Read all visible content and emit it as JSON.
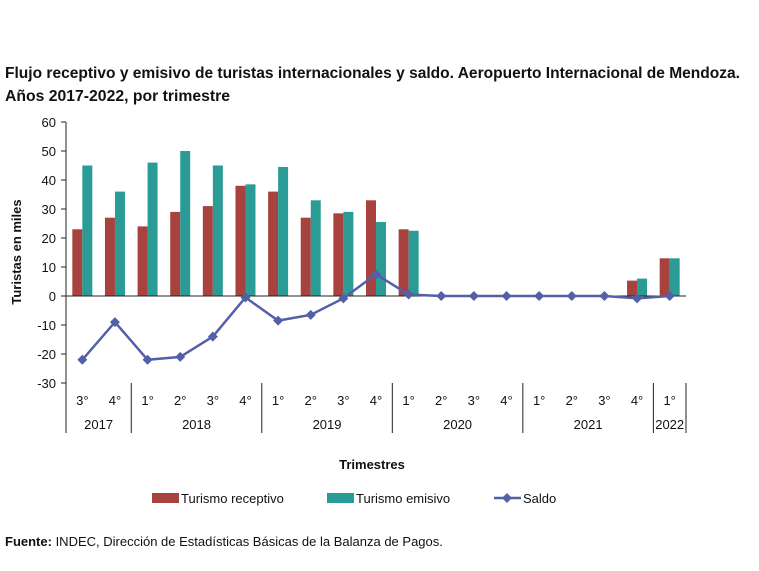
{
  "chart_data": {
    "type": "bar+line",
    "title": "Flujo receptivo y emisivo de turistas internacionales y saldo. Aeropuerto Internacional de Mendoza.",
    "subtitle": "Años 2017-2022, por trimestre",
    "xlabel": "Trimestres",
    "ylabel": "Turistas en miles",
    "ylim": [
      -30,
      60
    ],
    "yticks": [
      60,
      50,
      40,
      30,
      20,
      10,
      0,
      -10,
      -20,
      -30
    ],
    "grid": false,
    "legend_position": "bottom",
    "categories": [
      "3°",
      "4°",
      "1°",
      "2°",
      "3°",
      "4°",
      "1°",
      "2°",
      "3°",
      "4°",
      "1°",
      "2°",
      "3°",
      "4°",
      "1°",
      "2°",
      "3°",
      "4°",
      "1°"
    ],
    "year_groups": [
      {
        "label": "2017",
        "count": 2
      },
      {
        "label": "2018",
        "count": 4
      },
      {
        "label": "2019",
        "count": 4
      },
      {
        "label": "2020",
        "count": 4
      },
      {
        "label": "2021",
        "count": 4
      },
      {
        "label": "2022",
        "count": 1
      }
    ],
    "series": [
      {
        "name": "Turismo receptivo",
        "type": "bar",
        "color": "#A8423F",
        "values": [
          23,
          27,
          24,
          29,
          31,
          38,
          36,
          27,
          28.5,
          33,
          23,
          0,
          0,
          0,
          0,
          0,
          0,
          5.3,
          13
        ]
      },
      {
        "name": "Turismo emisivo",
        "type": "bar",
        "color": "#2A9B95",
        "values": [
          45,
          36,
          46,
          50,
          45,
          38.5,
          44.5,
          33,
          29,
          25.5,
          22.5,
          0,
          0,
          0,
          0,
          0,
          0,
          6,
          13
        ]
      },
      {
        "name": "Saldo",
        "type": "line",
        "color": "#5360A8",
        "values": [
          -22,
          -9,
          -22,
          -21,
          -14,
          -0.5,
          -8.5,
          -6.5,
          -0.8,
          7.5,
          0.5,
          0,
          0,
          0,
          0,
          0,
          0,
          -0.8,
          0
        ]
      }
    ]
  },
  "source": {
    "label": "Fuente:",
    "text": " INDEC, Dirección de Estadísticas Básicas de la Balanza de Pagos."
  }
}
